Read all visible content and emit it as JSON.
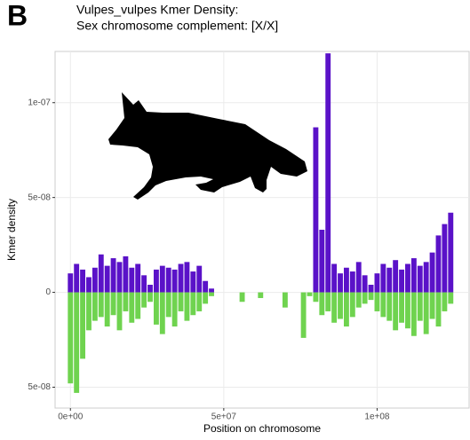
{
  "chart_data": {
    "type": "bar",
    "panel_label": "B",
    "title": "Vulpes_vulpes Kmer Density:",
    "subtitle": "Sex chromosome complement: [X/X]",
    "x_label": "Position on chromosome",
    "y_label": "Kmer density",
    "x": [
      0,
      2000000.0,
      4000000.0,
      6000000.0,
      8000000.0,
      10000000.0,
      12000000.0,
      14000000.0,
      16000000.0,
      18000000.0,
      20000000.0,
      22000000.0,
      24000000.0,
      26000000.0,
      28000000.0,
      30000000.0,
      32000000.0,
      34000000.0,
      36000000.0,
      38000000.0,
      40000000.0,
      42000000.0,
      44000000.0,
      46000000.0,
      48000000.0,
      50000000.0,
      52000000.0,
      54000000.0,
      56000000.0,
      58000000.0,
      60000000.0,
      62000000.0,
      64000000.0,
      66000000.0,
      68000000.0,
      70000000.0,
      72000000.0,
      74000000.0,
      76000000.0,
      78000000.0,
      80000000.0,
      82000000.0,
      84000000.0,
      86000000.0,
      88000000.0,
      90000000.0,
      92000000.0,
      94000000.0,
      96000000.0,
      98000000.0,
      100000000.0,
      102000000.0,
      104000000.0,
      106000000.0,
      108000000.0,
      110000000.0,
      112000000.0,
      114000000.0,
      116000000.0,
      118000000.0,
      120000000.0,
      122000000.0,
      124000000.0
    ],
    "series": [
      {
        "color": "#5a12c8",
        "values": [
          1e-08,
          1.5e-08,
          1.2e-08,
          8e-09,
          1.3e-08,
          2e-08,
          1.4e-08,
          1.8e-08,
          1.6e-08,
          1.9e-08,
          1.3e-08,
          1.5e-08,
          9e-09,
          4e-09,
          1.2e-08,
          1.4e-08,
          1.3e-08,
          1.2e-08,
          1.5e-08,
          1.6e-08,
          1.1e-08,
          1.4e-08,
          6e-09,
          2e-09,
          0,
          0,
          0,
          0,
          0,
          0,
          0,
          0,
          0,
          0,
          0,
          0,
          0,
          0,
          0,
          0,
          8.7e-08,
          3.3e-08,
          1.26e-07,
          1.5e-08,
          1e-08,
          1.3e-08,
          1.1e-08,
          1.6e-08,
          9e-09,
          4e-09,
          1e-08,
          1.5e-08,
          1.3e-08,
          1.7e-08,
          1.2e-08,
          1.5e-08,
          1.8e-08,
          1.4e-08,
          1.6e-08,
          2.1e-08,
          3e-08,
          3.6e-08,
          4.2e-08
        ]
      },
      {
        "color": "#6fd34f",
        "values": [
          -4.8e-08,
          -5.3e-08,
          -3.5e-08,
          -2e-08,
          -1.5e-08,
          -1.3e-08,
          -1.8e-08,
          -1.2e-08,
          -2e-08,
          -1e-08,
          -1.6e-08,
          -1.4e-08,
          -8e-09,
          -5e-09,
          -1.7e-08,
          -2.2e-08,
          -1.3e-08,
          -1.8e-08,
          -1e-08,
          -1.5e-08,
          -1.2e-08,
          -1e-08,
          -6e-09,
          -2e-09,
          0,
          0,
          0,
          0,
          -5e-09,
          0,
          0,
          -3e-09,
          0,
          0,
          0,
          -8e-09,
          0,
          0,
          -2.4e-08,
          -2e-09,
          -5e-09,
          -1.2e-08,
          -1e-08,
          -1.6e-08,
          -1.4e-08,
          -1.8e-08,
          -1.3e-08,
          -8e-09,
          -6e-09,
          -4e-09,
          -1e-08,
          -1.3e-08,
          -1.5e-08,
          -2e-08,
          -1.6e-08,
          -1.9e-08,
          -2.3e-08,
          -1.5e-08,
          -2.2e-08,
          -1.4e-08,
          -1.8e-08,
          -1e-08,
          -6e-09
        ]
      }
    ],
    "xlim": [
      -5000000.0,
      130000000.0
    ],
    "ylim": [
      -6.1e-08,
      1.27e-07
    ],
    "xticks": [
      {
        "value": 0,
        "label": "0e+00"
      },
      {
        "value": 50000000.0,
        "label": "5e+07"
      },
      {
        "value": 100000000.0,
        "label": "1e+08"
      }
    ],
    "yticks": [
      {
        "value": -5e-08,
        "label": "5e-08"
      },
      0,
      {
        "value": 5e-08,
        "label": "5e-08"
      },
      {
        "value": 1e-07,
        "label": "1e-07"
      }
    ],
    "grid": true
  }
}
